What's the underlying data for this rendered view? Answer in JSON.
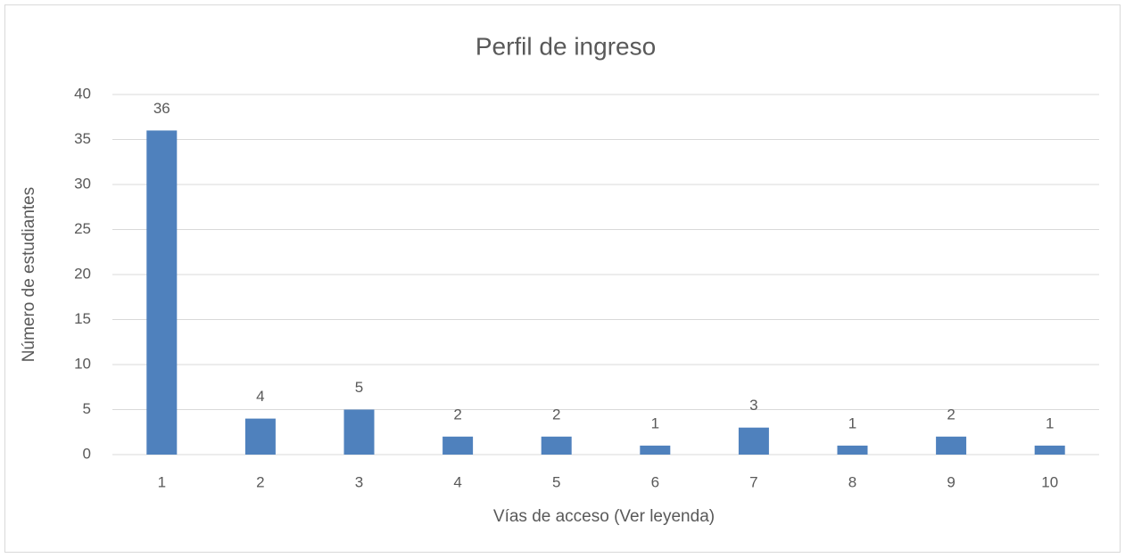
{
  "chart_data": {
    "type": "bar",
    "title": "Perfil de ingreso",
    "x_label": "Vías de acceso (Ver leyenda)",
    "y_label": "Número de estudiantes",
    "categories": [
      "1",
      "2",
      "3",
      "4",
      "5",
      "6",
      "7",
      "8",
      "9",
      "10"
    ],
    "values": [
      36,
      4,
      5,
      2,
      2,
      1,
      3,
      1,
      2,
      1
    ],
    "color": "#4f81bd",
    "ylim": [
      0,
      40
    ],
    "yticks": [
      0,
      5,
      10,
      15,
      20,
      25,
      30,
      35,
      40
    ],
    "grid": true,
    "data_labels": true
  }
}
